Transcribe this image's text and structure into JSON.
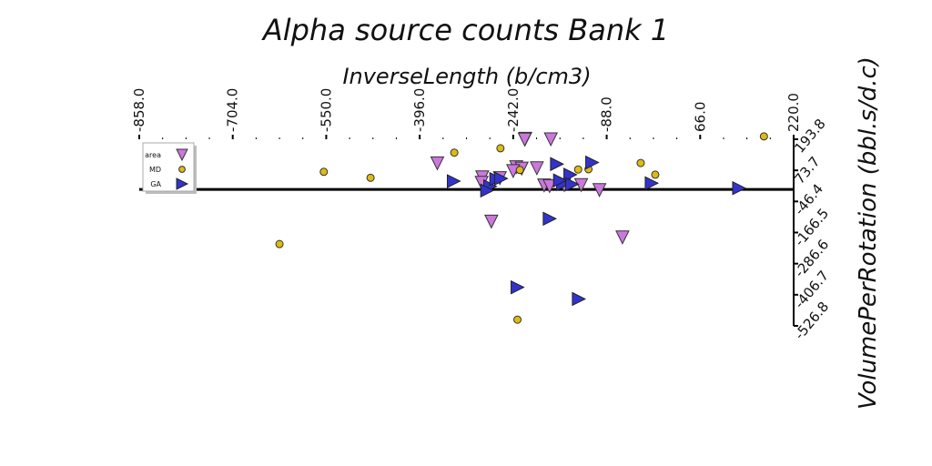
{
  "chart_data": {
    "type": "scatter",
    "title": "Alpha source counts Bank 1",
    "xlabel": "InverseLength (b/cm3)",
    "ylabel": "VolumePerRotation (bbl.s/d.c)",
    "x_ticks": [
      "-858.0",
      "-704.0",
      "-550.0",
      "-396.0",
      "-242.0",
      "-88.0",
      "66.0",
      "220.0"
    ],
    "y_ticks": [
      "193.8",
      "73.7",
      "-46.4",
      "-166.5",
      "-286.6",
      "-406.7",
      "-526.8"
    ],
    "xlim": [
      -858,
      220
    ],
    "ylim": [
      -526.8,
      193.8
    ],
    "x_axis_position": "top",
    "y_axis_position": "right",
    "grid": false,
    "legend": {
      "position": "top-left"
    },
    "series": [
      {
        "name": "area",
        "marker": "triangle-down",
        "color": "#cc77dd",
        "points": [
          [
            -222,
            196
          ],
          [
            -223,
            193
          ],
          [
            -180,
            194
          ],
          [
            -237,
            86
          ],
          [
            -228,
            81
          ],
          [
            -203,
            82
          ],
          [
            -293,
            47
          ],
          [
            -294,
            26
          ],
          [
            -264,
            44
          ],
          [
            -278,
            -124
          ],
          [
            -367,
            101
          ],
          [
            -242,
            71
          ],
          [
            -158,
            17
          ],
          [
            -130,
            17
          ],
          [
            -100,
            -2
          ],
          [
            -62,
            -185
          ],
          [
            -191,
            16
          ],
          [
            -182,
            13
          ]
        ]
      },
      {
        "name": "MD",
        "marker": "circle",
        "color": "#ddbb11",
        "points": [
          [
            -808,
            70
          ],
          [
            -554,
            68
          ],
          [
            -477,
            45
          ],
          [
            -339,
            142
          ],
          [
            -263,
            159
          ],
          [
            -231,
            75
          ],
          [
            -118,
            78
          ],
          [
            -135,
            77
          ],
          [
            -32,
            102
          ],
          [
            -8,
            57
          ],
          [
            171,
            205
          ],
          [
            -627,
            -211
          ],
          [
            -235,
            -503
          ]
        ]
      },
      {
        "name": "GA",
        "marker": "triangle-right",
        "color": "#3333cc",
        "points": [
          [
            -340,
            32
          ],
          [
            -280,
            12
          ],
          [
            -270,
            40
          ],
          [
            -262,
            42
          ],
          [
            -235,
            -378
          ],
          [
            -182,
            -113
          ],
          [
            -170,
            98
          ],
          [
            -160,
            21
          ],
          [
            -148,
            57
          ],
          [
            -145,
            20
          ],
          [
            -134,
            -423
          ],
          [
            -112,
            104
          ],
          [
            -14,
            24
          ],
          [
            130,
            5
          ],
          [
            -285,
            -4
          ],
          [
            -165,
            35
          ]
        ]
      }
    ]
  }
}
